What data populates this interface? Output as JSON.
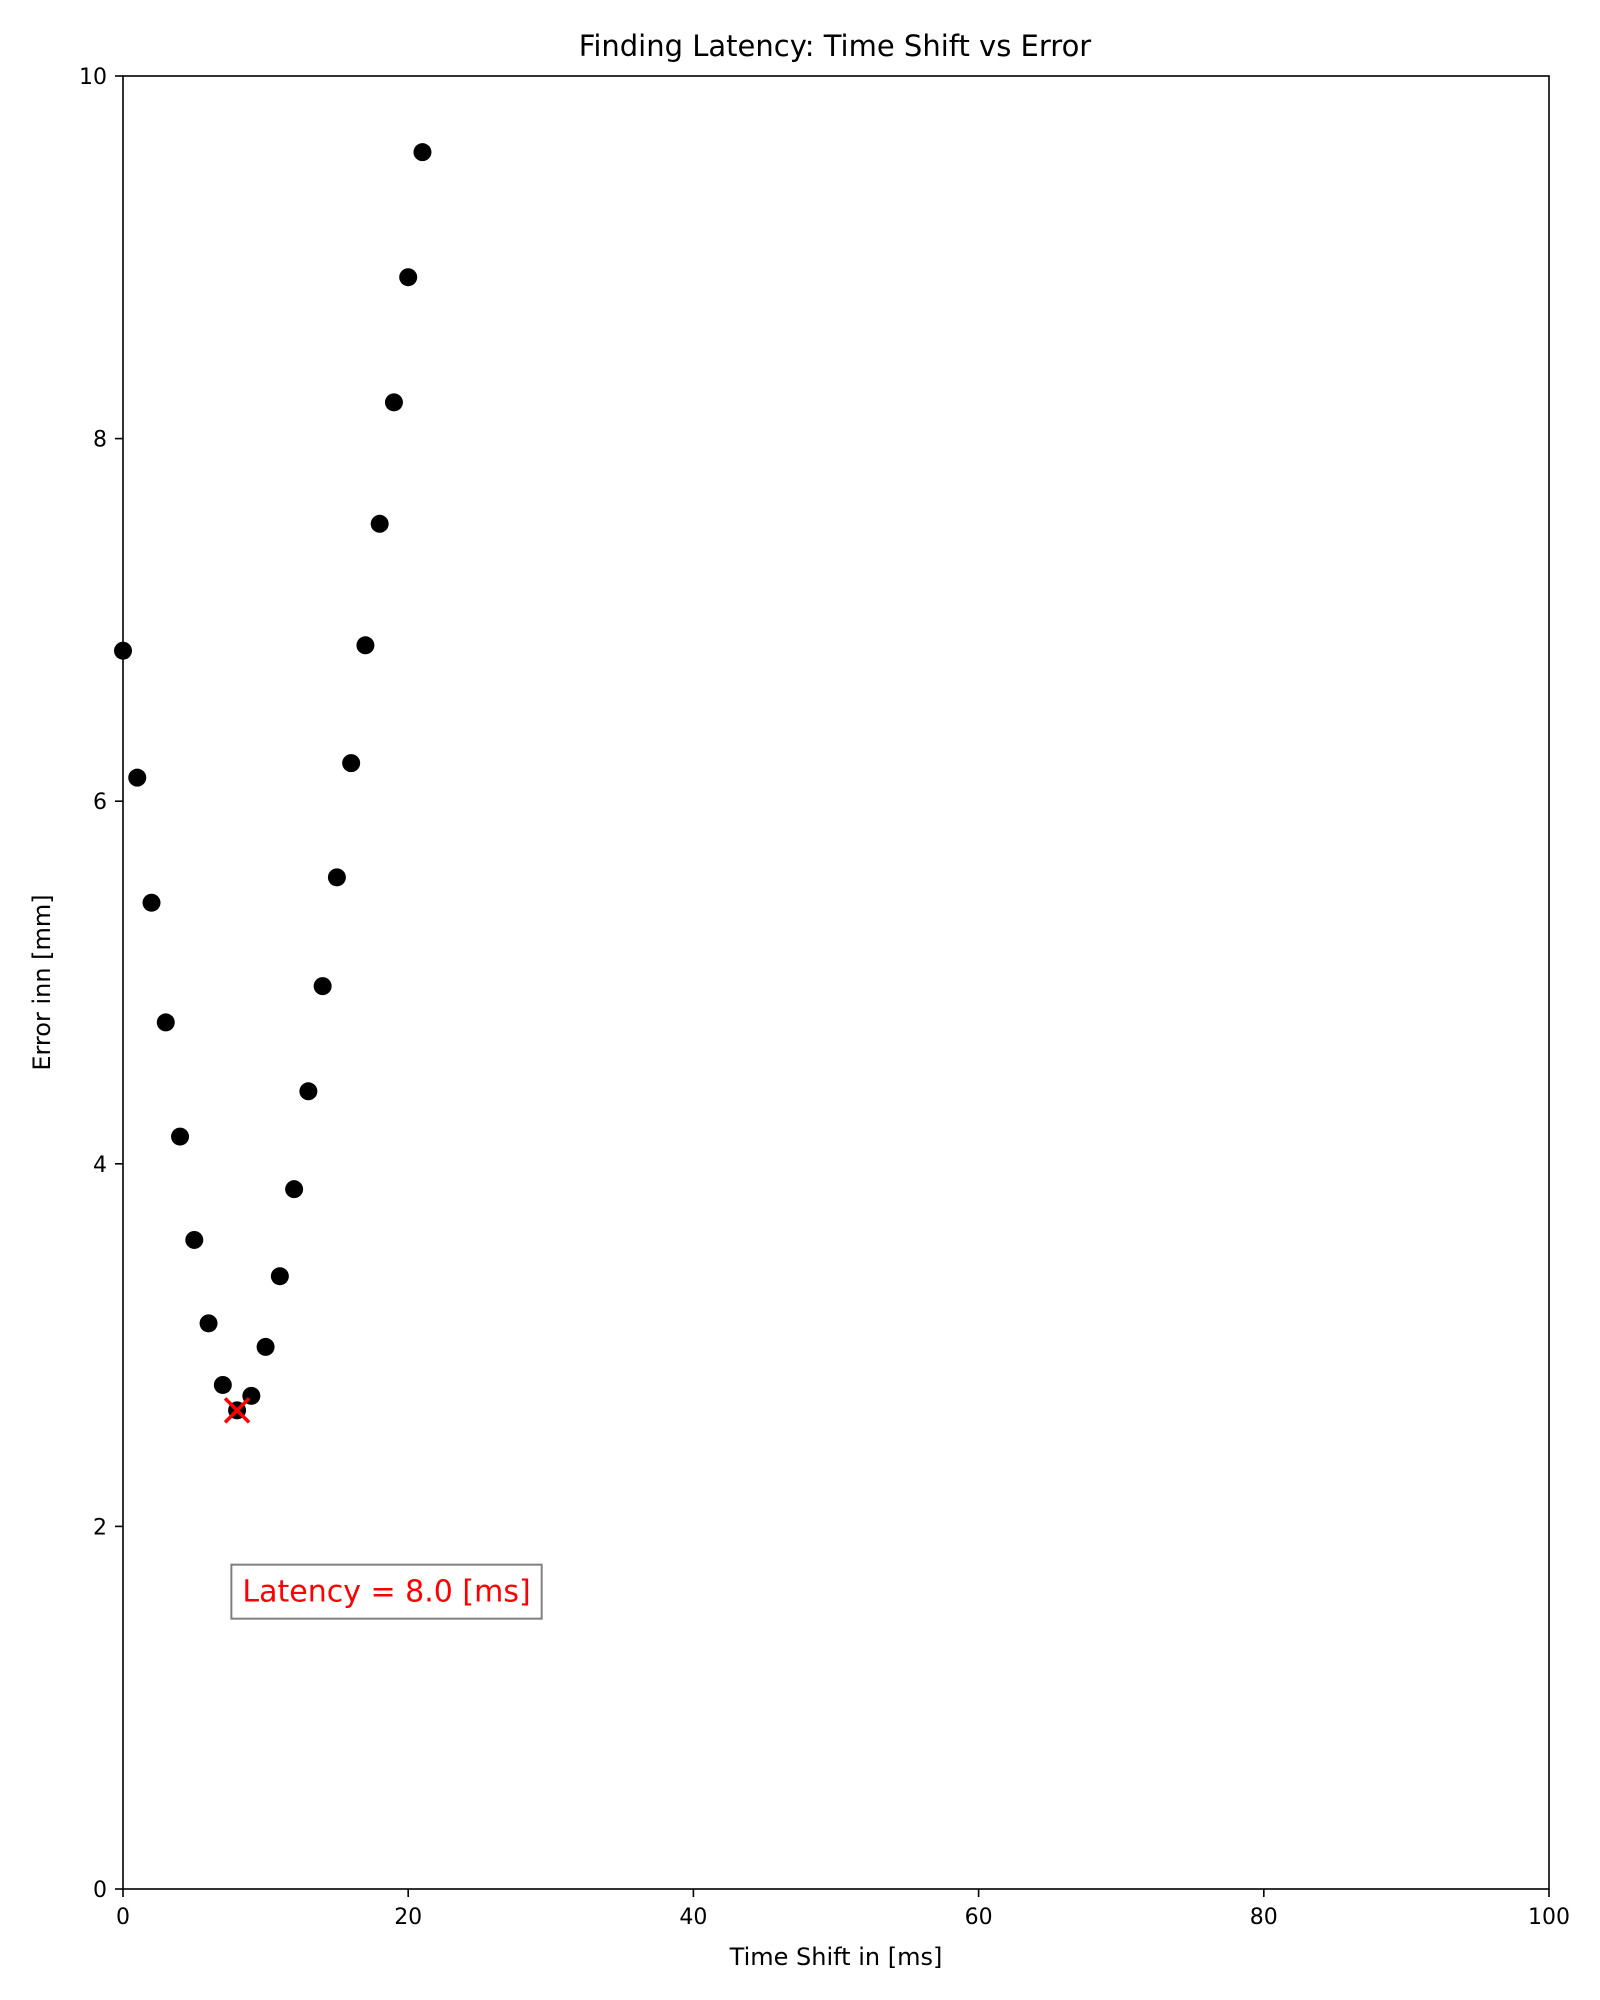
{
  "chart_data": {
    "type": "scatter",
    "title": "Finding Latency: Time Shift vs Error",
    "xlabel": "Time Shift in [ms]",
    "ylabel": "Error inn [mm]",
    "xlim": [
      0,
      100
    ],
    "ylim": [
      0,
      10
    ],
    "xticks": [
      0,
      20,
      40,
      60,
      80,
      100
    ],
    "yticks": [
      0,
      2,
      4,
      6,
      8,
      10
    ],
    "xtick_labels": [
      "0",
      "20",
      "40",
      "60",
      "80",
      "100"
    ],
    "ytick_labels": [
      "0",
      "2",
      "4",
      "6",
      "8",
      "10"
    ],
    "grid": false,
    "series": [
      {
        "marker": "circle",
        "color": "#000000",
        "x": [
          0,
          1,
          2,
          3,
          4,
          5,
          6,
          7,
          8,
          9,
          10,
          11,
          12,
          13,
          14,
          15,
          16,
          17,
          18,
          19,
          20,
          21
        ],
        "y": [
          6.83,
          6.13,
          5.44,
          4.78,
          4.15,
          3.58,
          3.12,
          2.78,
          2.64,
          2.72,
          2.99,
          3.38,
          3.86,
          4.4,
          4.98,
          5.58,
          6.21,
          6.86,
          7.53,
          8.2,
          8.89,
          9.58
        ]
      }
    ],
    "highlight": {
      "x": 8,
      "y": 2.64,
      "marker": "x",
      "color": "#ff0000"
    },
    "annotation": {
      "text": "Latency = 8.0 [ms]",
      "color": "#ff0000",
      "box_edge_color": "#808080",
      "x": 7.6,
      "y": 1.64
    }
  }
}
